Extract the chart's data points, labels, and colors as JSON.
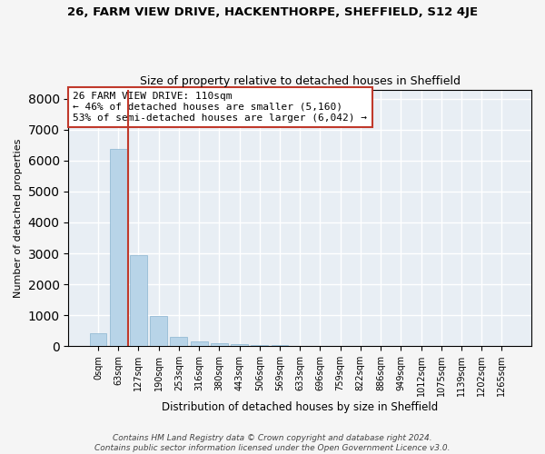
{
  "title": "26, FARM VIEW DRIVE, HACKENTHORPE, SHEFFIELD, S12 4JE",
  "subtitle": "Size of property relative to detached houses in Sheffield",
  "xlabel": "Distribution of detached houses by size in Sheffield",
  "ylabel": "Number of detached properties",
  "categories": [
    "0sqm",
    "63sqm",
    "127sqm",
    "190sqm",
    "253sqm",
    "316sqm",
    "380sqm",
    "443sqm",
    "506sqm",
    "569sqm",
    "633sqm",
    "696sqm",
    "759sqm",
    "822sqm",
    "886sqm",
    "949sqm",
    "1012sqm",
    "1075sqm",
    "1139sqm",
    "1202sqm",
    "1265sqm"
  ],
  "values": [
    430,
    6380,
    2950,
    990,
    310,
    160,
    90,
    60,
    40,
    30,
    20,
    18,
    14,
    10,
    8,
    6,
    5,
    4,
    3,
    2,
    1
  ],
  "bar_color": "#b8d4e8",
  "bar_edge_color": "#8ab4d0",
  "vline_color": "#c0392b",
  "vline_index": 1,
  "annotation_box_color": "#c0392b",
  "annotation_text": "26 FARM VIEW DRIVE: 110sqm\n← 46% of detached houses are smaller (5,160)\n53% of semi-detached houses are larger (6,042) →",
  "ylim": [
    0,
    8300
  ],
  "yticks": [
    0,
    1000,
    2000,
    3000,
    4000,
    5000,
    6000,
    7000,
    8000
  ],
  "footnote": "Contains HM Land Registry data © Crown copyright and database right 2024.\nContains public sector information licensed under the Open Government Licence v3.0.",
  "background_color": "#e8eef4",
  "grid_color": "#ffffff",
  "fig_facecolor": "#f5f5f5",
  "title_fontsize": 9.5,
  "subtitle_fontsize": 9,
  "xlabel_fontsize": 8.5,
  "ylabel_fontsize": 8,
  "tick_fontsize": 7,
  "annotation_fontsize": 8,
  "footnote_fontsize": 6.5
}
